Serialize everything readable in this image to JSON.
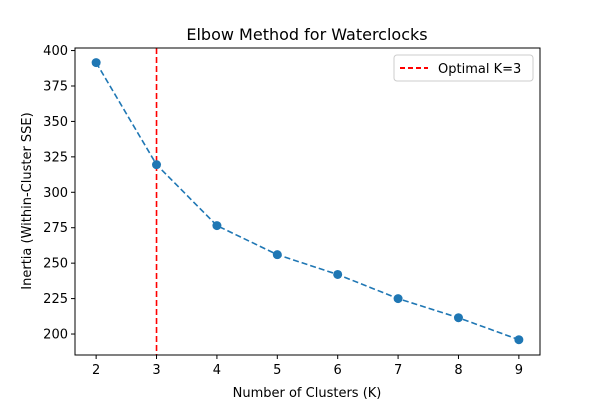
{
  "chart_data": {
    "type": "line",
    "title": "Elbow Method for Waterclocks",
    "xlabel": "Number of Clusters (K)",
    "ylabel": "Inertia (Within-Cluster SSE)",
    "x": [
      2,
      3,
      4,
      5,
      6,
      7,
      8,
      9
    ],
    "xlim": [
      1.65,
      9.35
    ],
    "ylim": [
      185.2,
      401.8
    ],
    "x_ticks": [
      2,
      3,
      4,
      5,
      6,
      7,
      8,
      9
    ],
    "y_ticks": [
      200,
      225,
      250,
      275,
      300,
      325,
      350,
      375,
      400
    ],
    "series": [
      {
        "values": [
          391.5,
          319.5,
          276.5,
          256.0,
          242.0,
          225.0,
          211.5,
          196.0
        ],
        "color": "#1f77b4",
        "line_style": "dashed",
        "marker": "circle"
      }
    ],
    "reference_lines": [
      {
        "orientation": "vertical",
        "x": 3,
        "label": "Optimal K=3",
        "color": "#ff0000",
        "line_style": "dashed"
      }
    ],
    "legend": {
      "placement": "top-right",
      "entries": [
        "Optimal K=3"
      ]
    },
    "grid": false
  }
}
